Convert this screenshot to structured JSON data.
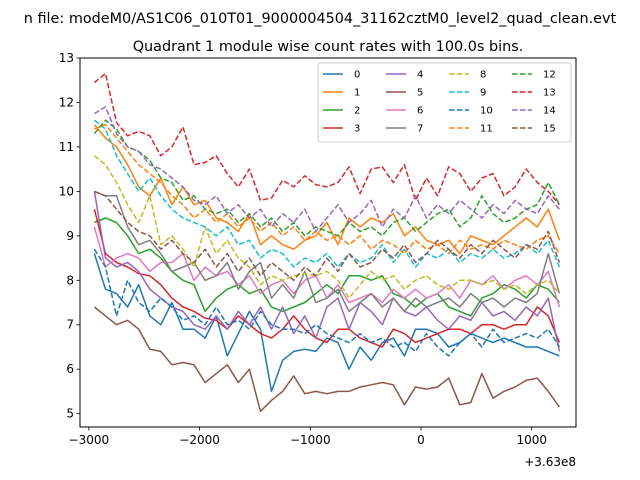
{
  "chart_data": {
    "type": "line",
    "suptitle": "n file: modeM0/AS1C06_010T01_9000004504_31162cztM0_level2_quad_clean.evt",
    "title": "Quadrant 1 module wise count rates with 100.0s bins.",
    "xlabel": "",
    "ylabel": "",
    "x_offset_label": "+3.63e8",
    "xlim": [
      -3080,
      1400
    ],
    "ylim": [
      4.7,
      13.0
    ],
    "x_ticks": [
      -3000,
      -2000,
      -1000,
      0,
      1000
    ],
    "x_tick_labels": [
      "−3000",
      "−2000",
      "−1000",
      "0",
      "1000"
    ],
    "y_ticks": [
      5,
      6,
      7,
      8,
      9,
      10,
      11,
      12,
      13
    ],
    "legend": {
      "placement": "top-right",
      "columns": 4
    },
    "x": [
      -2950,
      -2850,
      -2750,
      -2650,
      -2550,
      -2450,
      -2350,
      -2250,
      -2150,
      -2050,
      -1950,
      -1850,
      -1750,
      -1650,
      -1550,
      -1450,
      -1350,
      -1250,
      -1150,
      -1050,
      -950,
      -850,
      -750,
      -650,
      -550,
      -450,
      -350,
      -250,
      -150,
      -50,
      50,
      150,
      250,
      350,
      450,
      550,
      650,
      750,
      850,
      950,
      1050,
      1150,
      1250
    ],
    "series": [
      {
        "name": "0",
        "color": "#1f77b4",
        "dash": "solid",
        "values": [
          8.6,
          7.8,
          7.7,
          7.4,
          7.9,
          7.2,
          7.0,
          7.5,
          6.9,
          6.9,
          6.7,
          7.2,
          6.3,
          6.8,
          7.3,
          6.9,
          5.5,
          6.2,
          6.4,
          6.45,
          6.4,
          6.7,
          6.6,
          6.0,
          6.5,
          6.2,
          6.6,
          6.7,
          6.3,
          6.9,
          6.9,
          6.8,
          6.5,
          6.6,
          6.8,
          6.7,
          6.6,
          6.7,
          6.6,
          6.5,
          6.5,
          6.4,
          6.3
        ]
      },
      {
        "name": "1",
        "color": "#ff7f0e",
        "dash": "solid",
        "values": [
          11.5,
          11.2,
          11.0,
          10.6,
          10.1,
          9.9,
          10.3,
          9.7,
          10.1,
          9.7,
          9.8,
          9.4,
          9.3,
          9.1,
          9.5,
          8.8,
          9.0,
          8.8,
          8.7,
          8.9,
          9.0,
          9.3,
          8.8,
          9.4,
          9.2,
          9.4,
          9.3,
          9.5,
          9.0,
          9.2,
          8.9,
          8.8,
          8.9,
          8.6,
          9.0,
          8.9,
          8.8,
          9.0,
          9.2,
          9.4,
          9.2,
          9.6,
          8.9
        ]
      },
      {
        "name": "2",
        "color": "#2ca02c",
        "dash": "solid",
        "values": [
          9.3,
          9.4,
          9.3,
          9.0,
          8.6,
          8.7,
          8.5,
          8.2,
          8.0,
          7.9,
          7.3,
          7.6,
          7.8,
          7.9,
          7.7,
          7.8,
          7.4,
          7.3,
          7.4,
          7.5,
          7.7,
          7.9,
          7.7,
          8.1,
          8.1,
          8.0,
          8.1,
          7.7,
          7.6,
          7.4,
          7.6,
          7.7,
          7.4,
          7.3,
          7.2,
          7.6,
          7.7,
          7.9,
          7.8,
          7.6,
          7.9,
          7.8,
          7.5
        ]
      },
      {
        "name": "3",
        "color": "#d62728",
        "dash": "solid",
        "values": [
          9.6,
          8.6,
          8.4,
          8.3,
          8.15,
          8.1,
          7.9,
          7.6,
          7.4,
          7.3,
          7.15,
          7.1,
          6.9,
          7.2,
          7.0,
          6.8,
          6.7,
          6.9,
          7.2,
          6.9,
          6.7,
          6.6,
          6.9,
          6.9,
          6.7,
          6.6,
          6.5,
          6.9,
          6.8,
          6.6,
          6.7,
          6.8,
          6.9,
          6.9,
          6.8,
          7.0,
          7.0,
          6.9,
          7.0,
          7.0,
          7.4,
          7.2,
          6.6
        ]
      },
      {
        "name": "4",
        "color": "#9467bd",
        "dash": "solid",
        "values": [
          10.0,
          8.5,
          8.3,
          8.4,
          8.2,
          7.8,
          7.6,
          7.4,
          7.3,
          7.0,
          6.9,
          7.2,
          6.9,
          7.3,
          7.0,
          7.4,
          6.9,
          7.4,
          6.8,
          7.2,
          6.7,
          7.4,
          7.6,
          6.9,
          7.5,
          7.3,
          7.0,
          7.6,
          7.3,
          7.2,
          7.4,
          7.1,
          6.9,
          7.2,
          7.1,
          7.5,
          7.2,
          7.3,
          7.1,
          7.4,
          7.2,
          7.6,
          6.4
        ]
      },
      {
        "name": "5",
        "color": "#8c564b",
        "dash": "solid",
        "values": [
          7.4,
          7.2,
          7.0,
          7.1,
          6.9,
          6.45,
          6.4,
          6.1,
          6.15,
          6.1,
          5.7,
          5.9,
          6.1,
          5.7,
          6.0,
          5.05,
          5.3,
          5.5,
          5.85,
          5.45,
          5.5,
          5.45,
          5.5,
          5.5,
          5.6,
          5.65,
          5.7,
          5.65,
          5.2,
          5.6,
          5.55,
          5.6,
          5.8,
          5.2,
          5.25,
          5.9,
          5.35,
          5.5,
          5.6,
          5.75,
          5.8,
          5.5,
          5.15
        ]
      },
      {
        "name": "6",
        "color": "#e377c2",
        "dash": "solid",
        "values": [
          9.2,
          8.3,
          8.5,
          8.6,
          8.5,
          8.2,
          8.4,
          8.4,
          8.6,
          8.0,
          8.3,
          8.1,
          8.2,
          7.9,
          8.1,
          7.7,
          7.9,
          8.0,
          7.7,
          8.0,
          8.1,
          7.6,
          7.9,
          7.5,
          7.6,
          7.7,
          7.5,
          7.8,
          7.6,
          7.8,
          7.6,
          7.7,
          7.9,
          7.6,
          8.0,
          7.9,
          8.1,
          7.8,
          8.0,
          8.1,
          7.9,
          8.2,
          7.4
        ]
      },
      {
        "name": "7",
        "color": "#7f7f7f",
        "dash": "solid",
        "values": [
          10.0,
          9.9,
          9.9,
          9.2,
          8.8,
          8.9,
          8.6,
          8.2,
          8.3,
          8.4,
          8.0,
          8.1,
          8.4,
          7.8,
          8.2,
          8.4,
          7.6,
          7.9,
          7.6,
          8.2,
          7.5,
          7.6,
          7.8,
          7.3,
          7.5,
          7.7,
          7.4,
          7.6,
          7.3,
          7.6,
          7.4,
          7.5,
          7.6,
          7.4,
          7.7,
          7.5,
          7.6,
          7.4,
          7.6,
          7.5,
          7.7,
          8.6,
          7.7
        ]
      },
      {
        "name": "8",
        "color": "#bcbd22",
        "dash": "dashed",
        "values": [
          10.8,
          10.6,
          10.2,
          9.7,
          9.3,
          9.9,
          8.8,
          9.0,
          8.7,
          8.3,
          9.2,
          8.6,
          8.9,
          8.5,
          8.3,
          7.9,
          8.1,
          8.0,
          8.1,
          8.15,
          8.1,
          8.2,
          8.0,
          7.6,
          7.9,
          8.2,
          8.0,
          8.1,
          7.8,
          8.0,
          8.1,
          7.9,
          7.8,
          8.0,
          8.0,
          7.9,
          8.0,
          7.8,
          7.9,
          7.7,
          7.9,
          8.0,
          7.7
        ]
      },
      {
        "name": "9",
        "color": "#17becf",
        "dash": "dashed",
        "values": [
          11.6,
          11.4,
          10.8,
          10.4,
          10.0,
          10.3,
          9.9,
          9.6,
          9.4,
          9.3,
          9.2,
          9.0,
          9.2,
          8.8,
          8.9,
          8.5,
          8.7,
          8.6,
          8.3,
          8.5,
          8.4,
          8.6,
          8.3,
          8.6,
          8.4,
          8.5,
          8.8,
          8.4,
          8.7,
          8.3,
          8.6,
          8.5,
          8.7,
          8.4,
          8.6,
          8.5,
          8.7,
          8.5,
          8.6,
          8.8,
          8.6,
          8.9,
          8.3
        ]
      },
      {
        "name": "10",
        "color": "#1f77b4",
        "dash": "dashed",
        "values": [
          8.7,
          8.3,
          7.2,
          8.0,
          7.5,
          7.3,
          7.6,
          7.4,
          7.1,
          7.2,
          7.0,
          7.4,
          7.0,
          7.1,
          6.9,
          7.3,
          7.0,
          6.9,
          6.9,
          6.8,
          7.0,
          6.8,
          6.7,
          6.6,
          6.8,
          6.6,
          6.7,
          6.5,
          6.6,
          6.4,
          6.8,
          6.5,
          6.3,
          6.6,
          6.8,
          6.5,
          6.9,
          6.6,
          6.7,
          6.8,
          6.7,
          6.9,
          6.5
        ]
      },
      {
        "name": "11",
        "color": "#ff7f0e",
        "dash": "dashed",
        "values": [
          11.4,
          11.5,
          11.2,
          10.9,
          10.6,
          10.4,
          10.2,
          9.9,
          9.7,
          9.4,
          9.6,
          9.3,
          9.5,
          9.2,
          9.4,
          9.1,
          9.3,
          9.0,
          9.2,
          8.9,
          9.1,
          8.9,
          9.0,
          8.8,
          9.0,
          8.7,
          8.9,
          8.8,
          8.6,
          8.9,
          8.7,
          8.8,
          8.6,
          8.9,
          8.7,
          8.8,
          8.7,
          8.9,
          8.8,
          8.7,
          8.9,
          9.0,
          8.6
        ]
      },
      {
        "name": "12",
        "color": "#2ca02c",
        "dash": "dashed",
        "values": [
          11.3,
          11.6,
          11.4,
          11.0,
          10.9,
          10.7,
          10.3,
          10.2,
          9.8,
          9.9,
          9.6,
          9.5,
          9.6,
          9.3,
          9.5,
          9.2,
          9.4,
          9.1,
          9.3,
          9.0,
          9.2,
          9.1,
          9.0,
          9.3,
          9.1,
          9.2,
          9.0,
          9.3,
          9.4,
          9.1,
          9.3,
          9.5,
          9.6,
          9.2,
          9.4,
          9.9,
          9.5,
          9.3,
          9.4,
          9.6,
          9.7,
          10.2,
          9.7
        ]
      },
      {
        "name": "13",
        "color": "#d62728",
        "dash": "dashed",
        "values": [
          12.45,
          12.65,
          11.55,
          11.25,
          11.35,
          11.25,
          10.8,
          11.0,
          11.45,
          10.6,
          10.65,
          10.8,
          10.4,
          10.1,
          10.5,
          9.8,
          9.85,
          10.25,
          10.1,
          10.35,
          10.15,
          10.1,
          10.2,
          10.55,
          9.95,
          10.5,
          10.55,
          10.2,
          10.6,
          9.8,
          10.3,
          9.9,
          10.55,
          10.4,
          10.0,
          10.3,
          10.4,
          9.9,
          10.1,
          10.5,
          10.2,
          10.0,
          9.7
        ]
      },
      {
        "name": "14",
        "color": "#9467bd",
        "dash": "dashed",
        "values": [
          11.75,
          11.9,
          11.3,
          11.0,
          10.9,
          10.6,
          10.5,
          10.3,
          10.1,
          9.8,
          9.7,
          9.9,
          9.5,
          9.7,
          9.4,
          9.6,
          9.2,
          9.5,
          9.3,
          9.6,
          9.1,
          9.4,
          9.7,
          9.3,
          9.5,
          9.8,
          9.2,
          9.6,
          9.4,
          9.9,
          9.4,
          9.7,
          9.5,
          9.8,
          9.6,
          9.4,
          9.7,
          9.5,
          9.8,
          9.6,
          9.5,
          9.9,
          9.6
        ]
      },
      {
        "name": "15",
        "color": "#8c564b",
        "dash": "dashed",
        "values": [
          10.0,
          9.9,
          9.6,
          9.3,
          9.1,
          9.0,
          8.7,
          8.9,
          8.6,
          8.4,
          8.7,
          8.3,
          8.6,
          8.2,
          8.5,
          8.1,
          8.4,
          8.2,
          8.0,
          8.3,
          8.1,
          8.5,
          8.2,
          8.6,
          8.3,
          8.4,
          8.7,
          8.5,
          8.8,
          8.4,
          8.6,
          8.9,
          8.7,
          8.5,
          8.8,
          8.6,
          8.9,
          8.7,
          8.5,
          8.8,
          8.7,
          9.1,
          8.4
        ]
      }
    ]
  }
}
